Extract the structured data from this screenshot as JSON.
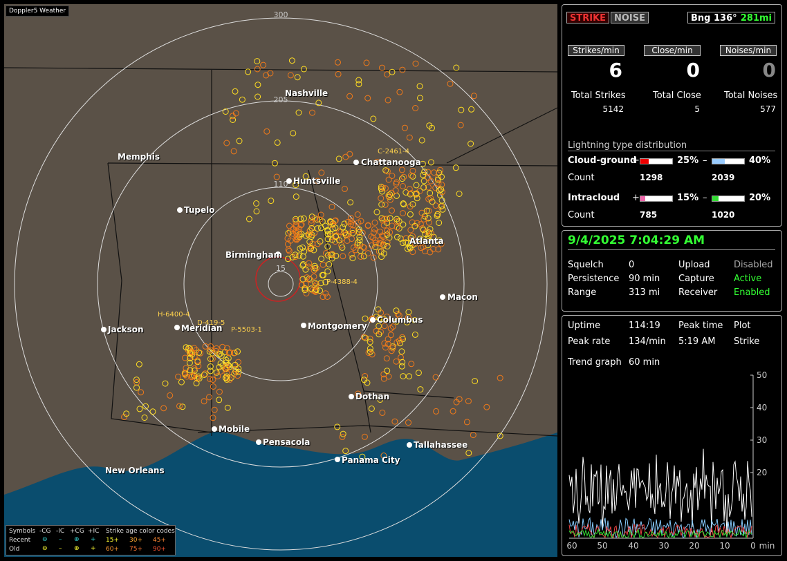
{
  "app": {
    "title": "Doppler5 Weather"
  },
  "colors": {
    "land": "#5a5147",
    "water": "#0a4d6e",
    "accent_green": "#33ff33",
    "strike_red": "#cc2222"
  },
  "map": {
    "range_labels": [
      "300",
      "205",
      "110",
      "15"
    ],
    "cities": [
      "Nashville",
      "Memphis",
      "Huntsville",
      "Chattanooga",
      "Tupelo",
      "Birmingham",
      "Atlanta",
      "Macon",
      "Jackson",
      "Meridian",
      "Montgomery",
      "Columbus",
      "Dothan",
      "Mobile",
      "Pensacola",
      "Tallahassee",
      "Panama City",
      "New Orleans"
    ],
    "markers": [
      "C-2461-4",
      "H-6400-4",
      "D-419-5",
      "P-5503-1",
      "P-4388-4"
    ]
  },
  "legend": {
    "symbols_label": "Symbols",
    "recent_label": "Recent",
    "old_label": "Old",
    "types": [
      "-CG",
      "-IC",
      "+CG",
      "+IC"
    ],
    "age_title": "Strike age color codes",
    "recent_ages": [
      "15+",
      "30+",
      "45+"
    ],
    "old_ages": [
      "60+",
      "75+",
      "90+"
    ]
  },
  "status": {
    "strike_btn": "STRIKE",
    "noise_btn": "NOISE",
    "bearing": "Bng 136°",
    "distance": "281mi",
    "strikes_min_label": "Strikes/min",
    "close_min_label": "Close/min",
    "noises_min_label": "Noises/min",
    "strikes_min": "6",
    "close_min": "0",
    "noises_min": "0",
    "total_strikes_label": "Total Strikes",
    "total_close_label": "Total Close",
    "total_noises_label": "Total Noises",
    "total_strikes": "5142",
    "total_close": "5",
    "total_noises": "577",
    "dist_title": "Lightning type distribution",
    "cg_label": "Cloud-ground",
    "ic_label": "Intracloud",
    "count_label": "Count",
    "plus": "+",
    "minus": "–",
    "cg_plus_pct": "25%",
    "cg_minus_pct": "40%",
    "ic_plus_pct": "15%",
    "ic_minus_pct": "20%",
    "cg_plus_count": "1298",
    "cg_minus_count": "2039",
    "ic_plus_count": "785",
    "ic_minus_count": "1020",
    "cg_plus_frac": 0.25,
    "cg_minus_frac": 0.4,
    "ic_plus_frac": 0.15,
    "ic_minus_frac": 0.2
  },
  "info": {
    "datetime": "9/4/2025 7:04:29 AM",
    "squelch_label": "Squelch",
    "squelch": "0",
    "persistence_label": "Persistence",
    "persistence": "90 min",
    "range_label": "Range",
    "range": "313 mi",
    "upload_label": "Upload",
    "upload": "Disabled",
    "capture_label": "Capture",
    "capture": "Active",
    "receiver_label": "Receiver",
    "receiver": "Enabled"
  },
  "trend": {
    "uptime_label": "Uptime",
    "uptime": "114:19",
    "peak_time_label": "Peak time",
    "peak_time": "5:19 AM",
    "plot_label": "Plot",
    "plot": "Strike",
    "peak_rate_label": "Peak rate",
    "peak_rate": "134/min",
    "trend_label": "Trend graph",
    "trend_window": "60 min",
    "y_ticks": [
      "50",
      "40",
      "30",
      "20"
    ],
    "x_ticks": [
      "60",
      "50",
      "40",
      "30",
      "20",
      "10",
      "0"
    ],
    "x_unit": "min"
  }
}
